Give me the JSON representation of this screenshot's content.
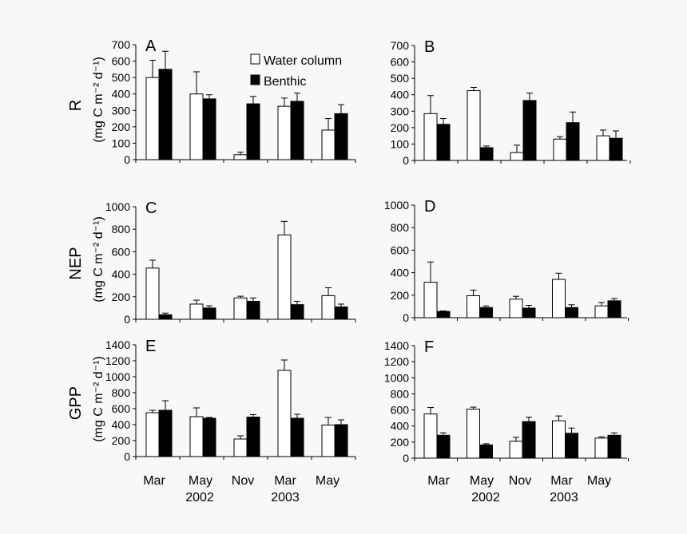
{
  "legend": {
    "water_column": "Water column",
    "benthic": "Benthic"
  },
  "colors": {
    "water_column": "#ffffff",
    "benthic": "#000000",
    "background": "#f8f8f8"
  },
  "row_labels": {
    "r": "R",
    "nep": "NEP",
    "gpp": "GPP"
  },
  "units_label": "(mg C m⁻² d⁻¹)",
  "x_categories": [
    "Mar",
    "May",
    "Nov",
    "Mar",
    "May"
  ],
  "year_labels": {
    "y2002": "2002",
    "y2003": "2003"
  },
  "chart_data": [
    {
      "type": "bar",
      "panel": "A",
      "ylabel": "R",
      "ylim": [
        0,
        700
      ],
      "yticks": [
        0,
        100,
        200,
        300,
        400,
        500,
        600,
        700
      ],
      "categories": [
        "Mar 2002",
        "May 2002",
        "Nov 2002",
        "Mar 2003",
        "May 2003"
      ],
      "series": [
        {
          "name": "Water column",
          "values": [
            500,
            400,
            30,
            325,
            180
          ],
          "errors": [
            105,
            135,
            15,
            50,
            70
          ]
        },
        {
          "name": "Benthic",
          "values": [
            550,
            370,
            340,
            355,
            280
          ],
          "errors": [
            110,
            25,
            45,
            50,
            55
          ]
        }
      ]
    },
    {
      "type": "bar",
      "panel": "B",
      "ylim": [
        0,
        700
      ],
      "yticks": [
        0,
        100,
        200,
        300,
        400,
        500,
        600,
        700
      ],
      "categories": [
        "Mar 2002",
        "May 2002",
        "Nov 2002",
        "Mar 2003",
        "May 2003"
      ],
      "series": [
        {
          "name": "Water column",
          "values": [
            285,
            425,
            48,
            130,
            150
          ],
          "errors": [
            110,
            20,
            45,
            15,
            35
          ]
        },
        {
          "name": "Benthic",
          "values": [
            220,
            78,
            365,
            230,
            135
          ],
          "errors": [
            35,
            10,
            45,
            65,
            45
          ]
        }
      ]
    },
    {
      "type": "bar",
      "panel": "C",
      "ylabel": "NEP",
      "ylim": [
        0,
        1000
      ],
      "yticks": [
        0,
        200,
        400,
        600,
        800,
        1000
      ],
      "categories": [
        "Mar 2002",
        "May 2002",
        "Nov 2002",
        "Mar 2003",
        "May 2003"
      ],
      "series": [
        {
          "name": "Water column",
          "values": [
            455,
            135,
            190,
            750,
            210
          ],
          "errors": [
            70,
            35,
            15,
            120,
            70
          ]
        },
        {
          "name": "Benthic",
          "values": [
            40,
            100,
            160,
            130,
            110
          ],
          "errors": [
            15,
            20,
            30,
            30,
            25
          ]
        }
      ]
    },
    {
      "type": "bar",
      "panel": "D",
      "ylim": [
        0,
        1000
      ],
      "yticks": [
        0,
        200,
        400,
        600,
        800,
        1000
      ],
      "categories": [
        "Mar 2002",
        "May 2002",
        "Nov 2002",
        "Mar 2003",
        "May 2003"
      ],
      "series": [
        {
          "name": "Water column",
          "values": [
            315,
            195,
            165,
            340,
            105
          ],
          "errors": [
            180,
            50,
            25,
            55,
            30
          ]
        },
        {
          "name": "Benthic",
          "values": [
            55,
            90,
            85,
            90,
            150
          ],
          "errors": [
            5,
            15,
            25,
            25,
            20
          ]
        }
      ]
    },
    {
      "type": "bar",
      "panel": "E",
      "ylabel": "GPP",
      "ylim": [
        0,
        1400
      ],
      "yticks": [
        0,
        200,
        400,
        600,
        800,
        1000,
        1200,
        1400
      ],
      "categories": [
        "Mar 2002",
        "May 2002",
        "Nov 2002",
        "Mar 2003",
        "May 2003"
      ],
      "series": [
        {
          "name": "Water column",
          "values": [
            550,
            500,
            220,
            1080,
            395
          ],
          "errors": [
            30,
            110,
            40,
            130,
            95
          ]
        },
        {
          "name": "Benthic",
          "values": [
            580,
            480,
            495,
            480,
            400
          ],
          "errors": [
            120,
            10,
            30,
            50,
            60
          ]
        }
      ]
    },
    {
      "type": "bar",
      "panel": "F",
      "ylim": [
        0,
        1400
      ],
      "yticks": [
        0,
        200,
        400,
        600,
        800,
        1000,
        1200,
        1400
      ],
      "categories": [
        "Mar 2002",
        "May 2002",
        "Nov 2002",
        "Mar 2003",
        "May 2003"
      ],
      "series": [
        {
          "name": "Water column",
          "values": [
            550,
            610,
            210,
            465,
            250
          ],
          "errors": [
            80,
            25,
            50,
            60,
            15
          ]
        },
        {
          "name": "Benthic",
          "values": [
            285,
            165,
            455,
            310,
            285
          ],
          "errors": [
            30,
            15,
            55,
            65,
            30
          ]
        }
      ]
    }
  ]
}
